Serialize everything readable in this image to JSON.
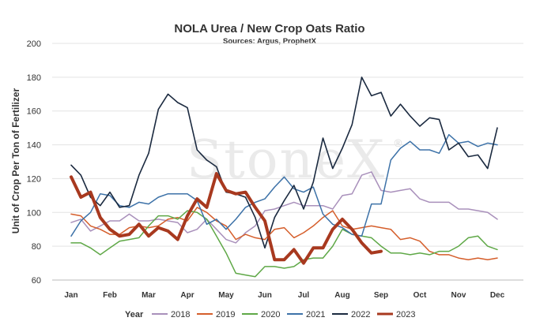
{
  "chart_data": {
    "type": "line",
    "title": "NOLA Urea / New Crop Oats Ratio",
    "subtitle": "Sources: Argus, ProphetX",
    "xlabel": "",
    "ylabel": "Unit of Crop Per Ton of Fertilizer",
    "ylim": [
      60,
      200
    ],
    "yticks": [
      "60",
      "80",
      "100",
      "120",
      "140",
      "160",
      "180",
      "200"
    ],
    "months": [
      "Jan",
      "Feb",
      "Mar",
      "Apr",
      "May",
      "Jun",
      "Jul",
      "Aug",
      "Sep",
      "Oct",
      "Nov",
      "Dec"
    ],
    "grid": true,
    "legend_title": "Year",
    "legend_position": "bottom",
    "watermark": "StoneX",
    "series": [
      {
        "name": "2018",
        "color": "#a990bb",
        "width": 1.5,
        "x": [
          1,
          1.25,
          1.5,
          1.75,
          2,
          2.25,
          2.5,
          2.75,
          3,
          3.25,
          3.5,
          3.75,
          4,
          4.25,
          4.5,
          4.75,
          5,
          5.25,
          5.5,
          5.75,
          6,
          6.25,
          6.5,
          6.75,
          7,
          7.25,
          7.5,
          7.75,
          8,
          8.25,
          8.5,
          8.75,
          9,
          9.25,
          9.5,
          9.75,
          10,
          10.25,
          10.5,
          10.75,
          11,
          11.25,
          11.5,
          11.75,
          12
        ],
        "y": [
          94,
          96,
          89,
          92,
          95,
          95,
          99,
          95,
          95,
          96,
          95,
          94,
          88,
          90,
          96,
          90,
          84,
          82,
          88,
          92,
          101,
          102,
          104,
          106,
          104,
          104,
          104,
          102,
          110,
          111,
          122,
          124,
          113,
          112,
          113,
          114,
          108,
          106,
          106,
          106,
          102,
          102,
          101,
          100,
          96
        ]
      },
      {
        "name": "2019",
        "color": "#d55e2b",
        "width": 1.5,
        "x": [
          1,
          1.25,
          1.5,
          1.75,
          2,
          2.25,
          2.5,
          2.75,
          3,
          3.25,
          3.5,
          3.75,
          4,
          4.25,
          4.5,
          4.75,
          5,
          5.25,
          5.5,
          5.75,
          6,
          6.25,
          6.5,
          6.75,
          7,
          7.25,
          7.5,
          7.75,
          8,
          8.25,
          8.5,
          8.75,
          9,
          9.25,
          9.5,
          9.75,
          10,
          10.25,
          10.5,
          10.75,
          11,
          11.25,
          11.5,
          11.75,
          12
        ],
        "y": [
          99,
          98,
          92,
          90,
          87,
          87,
          91,
          92,
          91,
          92,
          96,
          97,
          95,
          103,
          100,
          95,
          92,
          84,
          87,
          85,
          84,
          90,
          91,
          85,
          88,
          92,
          97,
          101,
          92,
          90,
          91,
          92,
          91,
          90,
          84,
          85,
          83,
          77,
          75,
          75,
          73,
          72,
          73,
          72,
          73
        ]
      },
      {
        "name": "2020",
        "color": "#5fa847",
        "width": 1.5,
        "x": [
          1,
          1.25,
          1.5,
          1.75,
          2,
          2.25,
          2.5,
          2.75,
          3,
          3.25,
          3.5,
          3.75,
          4,
          4.25,
          4.5,
          4.75,
          5,
          5.25,
          5.5,
          5.75,
          6,
          6.25,
          6.5,
          6.75,
          7,
          7.25,
          7.5,
          7.75,
          8,
          8.25,
          8.5,
          8.75,
          9,
          9.25,
          9.5,
          9.75,
          10,
          10.25,
          10.5,
          10.75,
          11,
          11.25,
          11.5,
          11.75,
          12
        ],
        "y": [
          82,
          82,
          79,
          75,
          79,
          83,
          84,
          85,
          92,
          98,
          98,
          96,
          101,
          100,
          96,
          86,
          76,
          64,
          63,
          62,
          68,
          68,
          67,
          68,
          72,
          73,
          73,
          80,
          90,
          87,
          86,
          85,
          80,
          76,
          76,
          75,
          76,
          75,
          77,
          77,
          80,
          85,
          86,
          80,
          78
        ]
      },
      {
        "name": "2021",
        "color": "#3d72a8",
        "width": 1.5,
        "x": [
          1,
          1.25,
          1.5,
          1.75,
          2,
          2.25,
          2.5,
          2.75,
          3,
          3.25,
          3.5,
          3.75,
          4,
          4.25,
          4.5,
          4.75,
          5,
          5.25,
          5.5,
          5.75,
          6,
          6.25,
          6.5,
          6.75,
          7,
          7.25,
          7.5,
          7.75,
          8,
          8.25,
          8.5,
          8.75,
          9,
          9.25,
          9.5,
          9.75,
          10,
          10.25,
          10.5,
          10.75,
          11,
          11.25,
          11.5,
          11.75,
          12
        ],
        "y": [
          86,
          95,
          100,
          111,
          110,
          104,
          103,
          106,
          105,
          109,
          111,
          111,
          111,
          107,
          93,
          96,
          90,
          96,
          103,
          106,
          108,
          115,
          121,
          114,
          112,
          115,
          99,
          93,
          91,
          87,
          86,
          105,
          105,
          131,
          138,
          142,
          137,
          137,
          135,
          146,
          141,
          142,
          139,
          141,
          140
        ]
      },
      {
        "name": "2022",
        "color": "#1b2a40",
        "width": 1.6,
        "x": [
          1,
          1.25,
          1.5,
          1.75,
          2,
          2.25,
          2.5,
          2.75,
          3,
          3.25,
          3.5,
          3.75,
          4,
          4.25,
          4.5,
          4.75,
          5,
          5.25,
          5.5,
          5.75,
          6,
          6.25,
          6.5,
          6.75,
          7,
          7.25,
          7.5,
          7.75,
          8,
          8.25,
          8.5,
          8.75,
          9,
          9.25,
          9.5,
          9.75,
          10,
          10.25,
          10.5,
          10.75,
          11,
          11.25,
          11.5,
          11.75,
          12
        ],
        "y": [
          128,
          122,
          109,
          104,
          112,
          103,
          104,
          122,
          135,
          161,
          170,
          165,
          162,
          137,
          131,
          127,
          112,
          111,
          109,
          97,
          79,
          97,
          107,
          116,
          102,
          118,
          144,
          126,
          138,
          152,
          180,
          169,
          171,
          157,
          164,
          157,
          151,
          156,
          155,
          137,
          141,
          133,
          134,
          126,
          150
        ]
      },
      {
        "name": "2023",
        "color": "#a8391f",
        "width": 4,
        "x": [
          1,
          1.25,
          1.5,
          1.75,
          2,
          2.25,
          2.5,
          2.75,
          3,
          3.25,
          3.5,
          3.75,
          4,
          4.25,
          4.5,
          4.75,
          5,
          5.25,
          5.5,
          5.75,
          6,
          6.25,
          6.5,
          6.75,
          7,
          7.25,
          7.5,
          7.75,
          8,
          8.25,
          8.5,
          8.75,
          9
        ],
        "y": [
          121,
          109,
          112,
          97,
          90,
          86,
          87,
          93,
          86,
          91,
          89,
          84,
          98,
          108,
          103,
          123,
          113,
          111,
          112,
          103,
          95,
          72,
          72,
          78,
          70,
          79,
          79,
          90,
          96,
          90,
          82,
          76,
          77
        ]
      }
    ]
  }
}
